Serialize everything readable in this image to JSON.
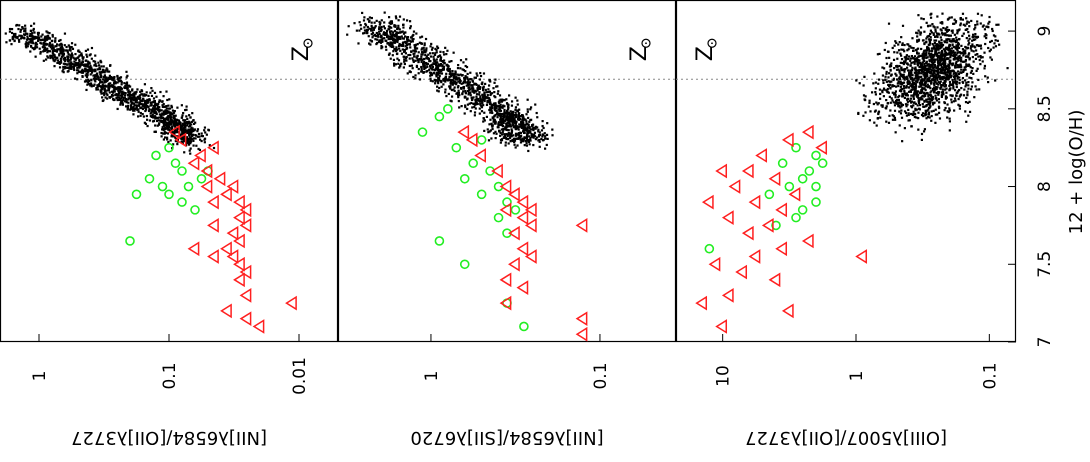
{
  "figure": {
    "orientation": "rotated-90",
    "shared_axis_label": "12 + log(O/H)",
    "shared_axis_ticks": [
      "7",
      "7.5",
      "8",
      "8.5",
      "9"
    ],
    "solar_label": "Z",
    "colors": {
      "sdss": "#000000",
      "sample_a": "#ff2020",
      "sample_b": "#22ee22",
      "solar_line": "#888888"
    }
  },
  "chart_data": [
    {
      "type": "scatter",
      "name": "panel-n2o2",
      "ylabel": "[NII]λ6584/[OII]λ3727",
      "yscale": "log",
      "y_ticks": [
        "1",
        "0.1",
        "0.01"
      ],
      "oh_range": [
        7.0,
        9.2
      ],
      "ratio_log_range": [
        0.3,
        -2.3
      ],
      "solar_oh": 8.69,
      "sdss_ridge": [
        [
          9.0,
          0.15
        ],
        [
          8.8,
          -0.3
        ],
        [
          8.6,
          -0.65
        ],
        [
          8.45,
          -1.0
        ],
        [
          8.3,
          -1.15
        ]
      ],
      "triangles": [
        [
          8.35,
          -1.05
        ],
        [
          8.3,
          -1.1
        ],
        [
          8.2,
          -1.25
        ],
        [
          8.1,
          -1.3
        ],
        [
          8.05,
          -1.4
        ],
        [
          8.0,
          -1.5
        ],
        [
          7.95,
          -1.45
        ],
        [
          7.9,
          -1.55
        ],
        [
          7.85,
          -1.6
        ],
        [
          7.8,
          -1.55
        ],
        [
          7.75,
          -1.6
        ],
        [
          7.7,
          -1.5
        ],
        [
          7.65,
          -1.55
        ],
        [
          7.6,
          -1.45
        ],
        [
          7.55,
          -1.5
        ],
        [
          7.5,
          -1.55
        ],
        [
          7.45,
          -1.6
        ],
        [
          7.4,
          -1.55
        ],
        [
          7.3,
          -1.6
        ],
        [
          7.25,
          -1.95
        ],
        [
          7.15,
          -1.6
        ],
        [
          7.1,
          -1.7
        ],
        [
          7.2,
          -1.45
        ],
        [
          7.6,
          -1.2
        ],
        [
          7.75,
          -1.35
        ],
        [
          8.15,
          -1.2
        ],
        [
          8.25,
          -1.35
        ],
        [
          7.55,
          -1.35
        ],
        [
          7.9,
          -1.35
        ],
        [
          8.0,
          -1.3
        ]
      ],
      "circles": [
        [
          8.2,
          -0.9
        ],
        [
          8.15,
          -1.05
        ],
        [
          8.1,
          -1.1
        ],
        [
          8.05,
          -0.85
        ],
        [
          8.0,
          -0.95
        ],
        [
          7.95,
          -1.0
        ],
        [
          7.9,
          -1.1
        ],
        [
          7.85,
          -1.2
        ],
        [
          8.1,
          -1.3
        ],
        [
          7.65,
          -0.7
        ],
        [
          8.25,
          -1.0
        ],
        [
          7.95,
          -0.75
        ],
        [
          8.0,
          -1.15
        ],
        [
          8.05,
          -1.25
        ]
      ]
    },
    {
      "type": "scatter",
      "name": "panel-n2s2",
      "ylabel": "[NII]λ6584/[SII]λ6720",
      "yscale": "log",
      "y_ticks": [
        "1",
        "0.1"
      ],
      "oh_range": [
        7.0,
        9.2
      ],
      "ratio_log_range": [
        0.55,
        -1.45
      ],
      "solar_oh": 8.69,
      "sdss_ridge": [
        [
          9.05,
          0.35
        ],
        [
          8.85,
          0.1
        ],
        [
          8.65,
          -0.2
        ],
        [
          8.45,
          -0.45
        ],
        [
          8.3,
          -0.55
        ]
      ],
      "triangles": [
        [
          8.35,
          -0.2
        ],
        [
          8.3,
          -0.25
        ],
        [
          8.2,
          -0.3
        ],
        [
          8.1,
          -0.4
        ],
        [
          8.0,
          -0.45
        ],
        [
          7.95,
          -0.5
        ],
        [
          7.9,
          -0.55
        ],
        [
          7.85,
          -0.6
        ],
        [
          7.8,
          -0.55
        ],
        [
          7.75,
          -0.6
        ],
        [
          7.7,
          -0.5
        ],
        [
          7.6,
          -0.55
        ],
        [
          7.55,
          -0.6
        ],
        [
          7.5,
          -0.5
        ],
        [
          7.4,
          -0.45
        ],
        [
          7.35,
          -0.55
        ],
        [
          7.25,
          -0.45
        ],
        [
          7.15,
          -0.9
        ],
        [
          7.05,
          -0.9
        ],
        [
          7.75,
          -0.9
        ],
        [
          7.85,
          -0.45
        ]
      ],
      "circles": [
        [
          8.5,
          -0.1
        ],
        [
          8.45,
          -0.05
        ],
        [
          8.35,
          0.05
        ],
        [
          8.25,
          -0.15
        ],
        [
          8.15,
          -0.25
        ],
        [
          8.1,
          -0.35
        ],
        [
          8.0,
          -0.4
        ],
        [
          7.95,
          -0.3
        ],
        [
          7.9,
          -0.45
        ],
        [
          7.85,
          -0.5
        ],
        [
          7.8,
          -0.4
        ],
        [
          7.7,
          -0.45
        ],
        [
          7.65,
          -0.05
        ],
        [
          7.5,
          -0.2
        ],
        [
          7.25,
          -0.45
        ],
        [
          7.1,
          -0.55
        ],
        [
          8.3,
          -0.3
        ],
        [
          8.05,
          -0.2
        ]
      ]
    },
    {
      "type": "scatter",
      "name": "panel-r23",
      "ylabel": "[OIII]λ5007/[OII]λ3727",
      "yscale": "log",
      "y_ticks": [
        "10",
        "1",
        "0.1"
      ],
      "oh_range": [
        7.0,
        9.2
      ],
      "ratio_log_range": [
        1.35,
        -1.2
      ],
      "solar_oh": 8.69,
      "sdss_cluster": {
        "center": [
          8.75,
          -0.55
        ],
        "spread": [
          0.28,
          0.3
        ]
      },
      "triangles": [
        [
          8.35,
          0.35
        ],
        [
          8.3,
          0.5
        ],
        [
          8.2,
          0.7
        ],
        [
          8.1,
          0.8
        ],
        [
          8.05,
          0.6
        ],
        [
          8.0,
          0.9
        ],
        [
          7.95,
          0.45
        ],
        [
          7.9,
          0.75
        ],
        [
          7.85,
          0.55
        ],
        [
          7.8,
          0.95
        ],
        [
          7.75,
          0.65
        ],
        [
          7.7,
          0.8
        ],
        [
          7.6,
          0.55
        ],
        [
          7.55,
          0.75
        ],
        [
          7.5,
          1.05
        ],
        [
          7.45,
          0.85
        ],
        [
          7.4,
          0.6
        ],
        [
          7.3,
          0.95
        ],
        [
          7.25,
          1.15
        ],
        [
          7.2,
          0.5
        ],
        [
          7.1,
          1.0
        ],
        [
          7.9,
          1.1
        ],
        [
          8.1,
          1.0
        ],
        [
          7.55,
          -0.05
        ],
        [
          8.25,
          0.25
        ],
        [
          7.65,
          0.35
        ]
      ],
      "circles": [
        [
          8.25,
          0.45
        ],
        [
          8.2,
          0.3
        ],
        [
          8.15,
          0.55
        ],
        [
          8.1,
          0.35
        ],
        [
          8.05,
          0.4
        ],
        [
          8.0,
          0.5
        ],
        [
          7.95,
          0.65
        ],
        [
          7.9,
          0.3
        ],
        [
          7.85,
          0.4
        ],
        [
          7.8,
          0.45
        ],
        [
          7.75,
          0.6
        ],
        [
          7.6,
          1.1
        ],
        [
          8.0,
          0.3
        ],
        [
          8.15,
          0.25
        ]
      ]
    }
  ]
}
